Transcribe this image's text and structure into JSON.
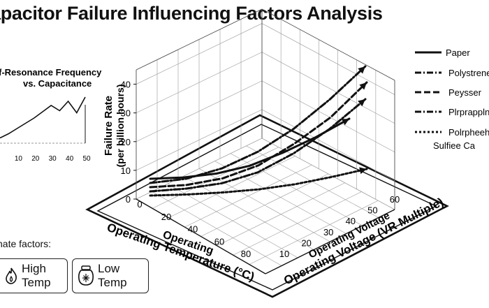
{
  "title": "apacitor Failure Influencing Factors Analysis",
  "inset": {
    "title_line1": "f-Resonance Frequency",
    "title_line2": "vs. Capacitance",
    "x_ticks": [
      "10",
      "20",
      "30",
      "40",
      "50"
    ]
  },
  "chart_data": [
    {
      "type": "line",
      "name": "main-3d-line",
      "title": "",
      "ylabel_line1": "Failure Rate",
      "ylabel_line2": "(per billion hours)",
      "y_ticks": [
        "0",
        "10",
        "20",
        "30",
        "40"
      ],
      "ylim": [
        0,
        45
      ],
      "temp_axis_label": "Operating",
      "temp_axis_label2": "Operating Temperature (°C)",
      "temp_ticks": [
        "0",
        "20",
        "40",
        "60",
        "80"
      ],
      "volt_axis_label": "Operating Voltage",
      "volt_axis_label2": "Operating Voltage (VR Multiple)",
      "volt_ticks": [
        "10",
        "20",
        "30",
        "40",
        "50",
        "60"
      ],
      "grid": true,
      "legend_position": "right",
      "series": [
        {
          "name": "Paper",
          "style": "solid",
          "y": [
            5,
            5.5,
            7,
            10,
            15,
            21,
            28
          ]
        },
        {
          "name": "Polystrene",
          "style": "dash-dot",
          "y": [
            6,
            7,
            9.5,
            13.5,
            19,
            26,
            34
          ]
        },
        {
          "name": "Peysser",
          "style": "dashed",
          "y": [
            4,
            4.5,
            6,
            9,
            14,
            20,
            28
          ]
        },
        {
          "name": "Plrprappln",
          "style": "dash-dot",
          "y": [
            3,
            3.5,
            4.5,
            6.5,
            10,
            14.5,
            20
          ]
        },
        {
          "name": "Polrpheeh",
          "name_line2": "Sulfiee Ca",
          "style": "dotted",
          "y": [
            2,
            2.5,
            3.5,
            5,
            7.5,
            11,
            15
          ]
        }
      ]
    },
    {
      "type": "line",
      "name": "inset-line",
      "title": "f-Resonance Frequency vs. Capacitance",
      "x": [
        0,
        5,
        10,
        15,
        20,
        25,
        30,
        35,
        40,
        45,
        50
      ],
      "y": [
        10,
        18,
        28,
        38,
        48,
        60,
        72,
        62,
        80,
        58,
        88
      ],
      "xlim": [
        0,
        50
      ],
      "ylim": [
        0,
        100
      ]
    }
  ],
  "climate": {
    "label": "nate factors:",
    "high_temp": "High Temp",
    "low_temp": "Low Temp"
  }
}
